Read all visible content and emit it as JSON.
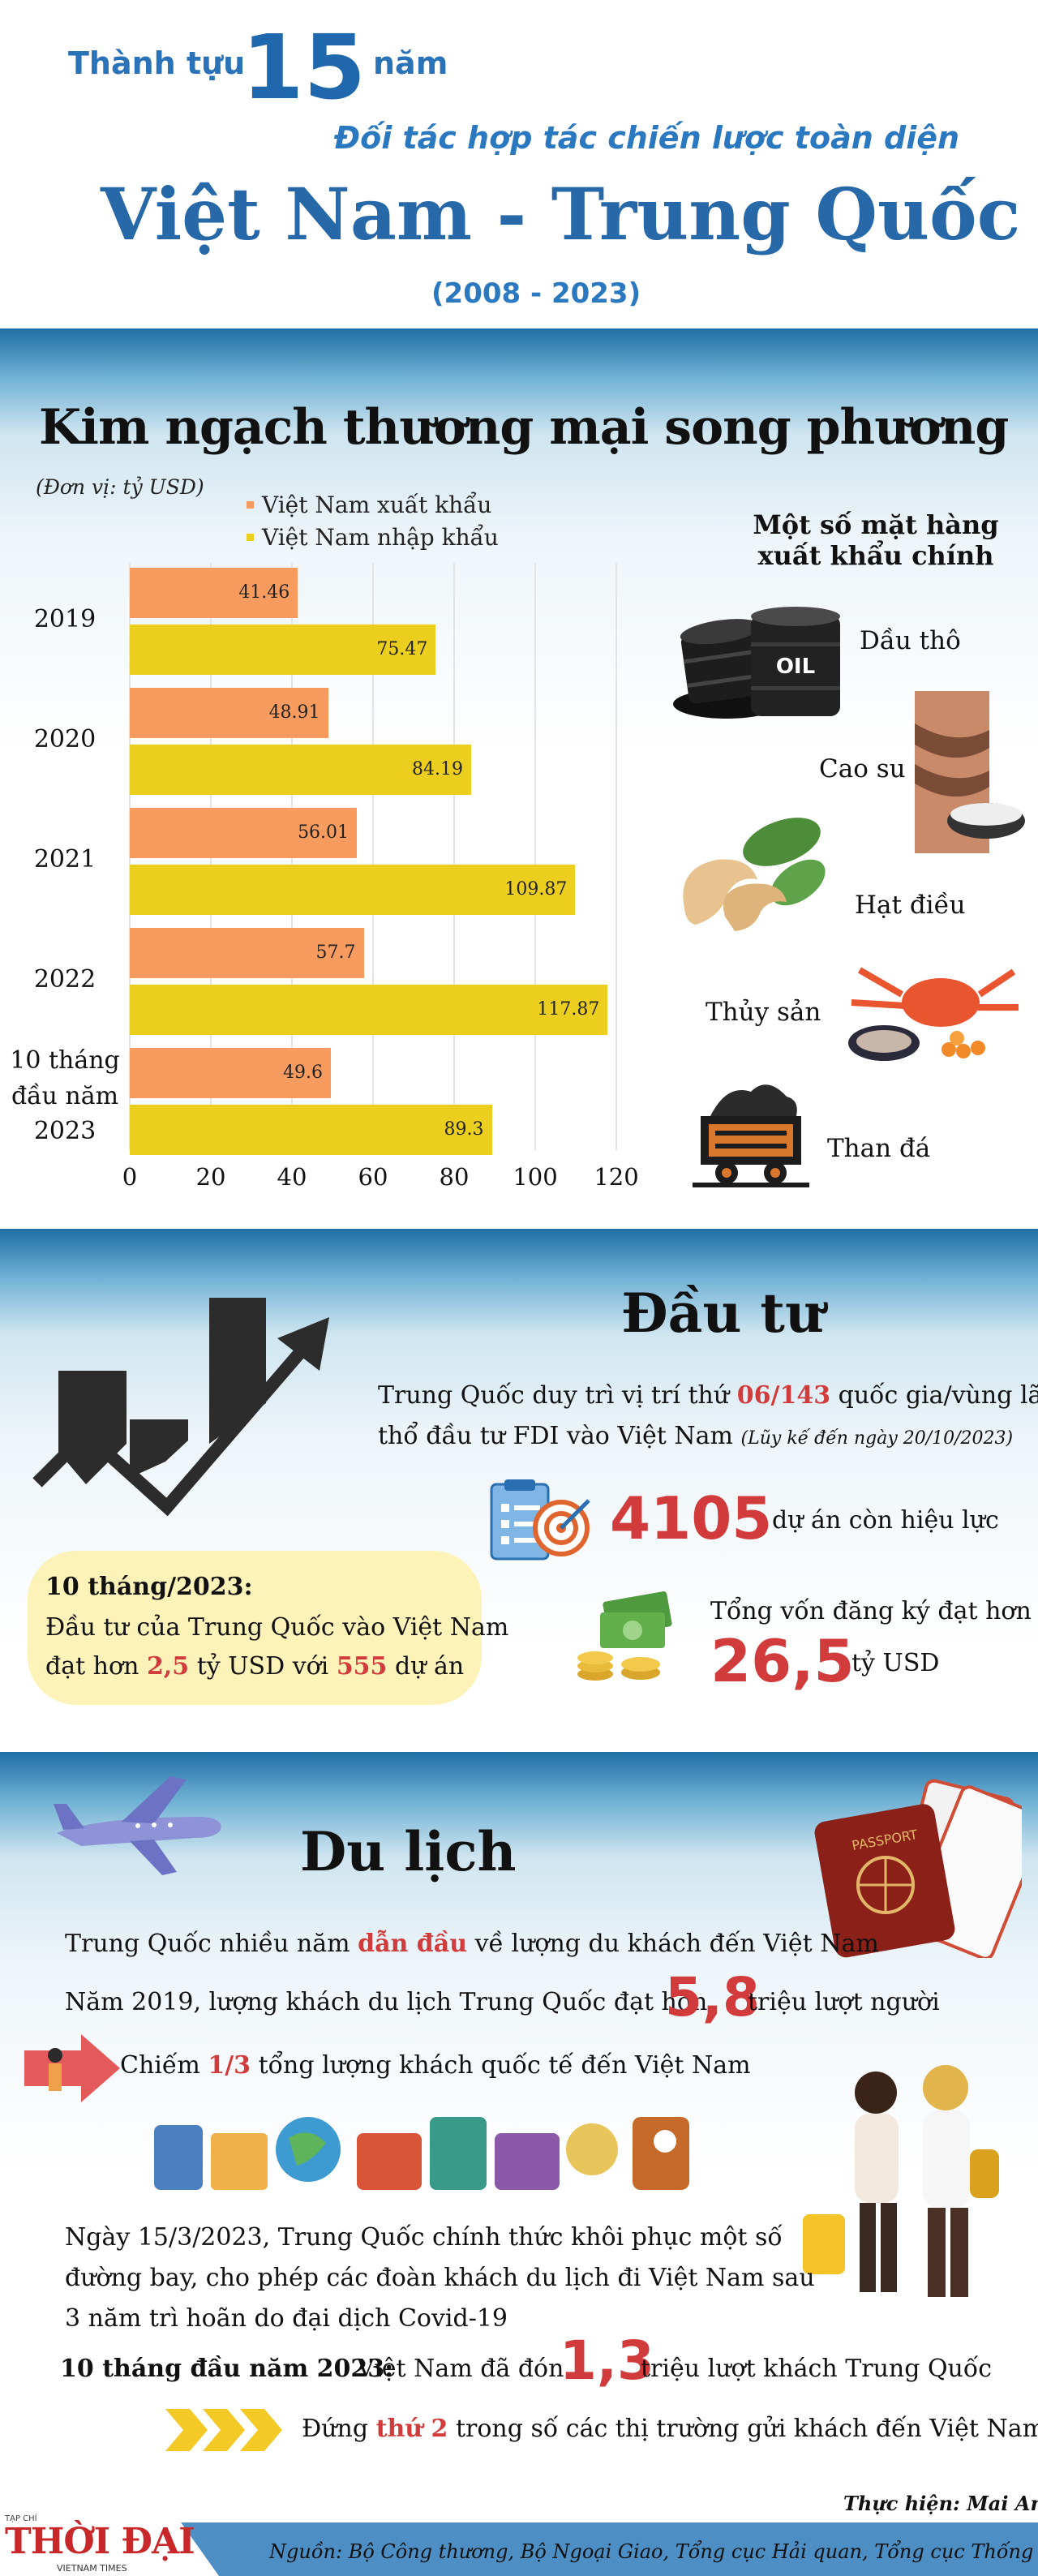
{
  "header": {
    "prefix": "Thành tựu",
    "number": "15",
    "suffix": "năm",
    "subtitle": "Đối tác hợp tác chiến lược toàn diện",
    "title": "Việt Nam - Trung Quốc",
    "years": "(2008 - 2023)"
  },
  "trade": {
    "title": "Kim ngạch thương mại song phương",
    "unit": "(Đơn vị: tỷ USD)",
    "exports_title": "Một số mặt hàng xuất khẩu chính",
    "exports": [
      "Dầu thô",
      "Cao su",
      "Hạt điều",
      "Thủy sản",
      "Than đá"
    ]
  },
  "chart_data": {
    "type": "bar",
    "orientation": "horizontal",
    "categories": [
      "2019",
      "2020",
      "2021",
      "2022",
      "10 tháng đầu năm 2023"
    ],
    "series": [
      {
        "name": "Việt Nam xuất khẩu",
        "values": [
          41.46,
          48.91,
          56.01,
          57.7,
          49.6
        ],
        "value_labels": [
          "41.46",
          "48.91",
          "56.01",
          "57.7",
          "49.6"
        ],
        "color": "#f79b5f"
      },
      {
        "name": "Việt Nam nhập khẩu",
        "values": [
          75.47,
          84.19,
          109.87,
          117.87,
          89.3
        ],
        "value_labels": [
          "75.47",
          "84.19",
          "109.87",
          "117.87",
          "89.3"
        ],
        "color": "#ecce1f"
      }
    ],
    "xlim": [
      0,
      120
    ],
    "xticks": [
      "0",
      "20",
      "40",
      "60",
      "80",
      "100",
      "120"
    ],
    "grid": true,
    "legend": "top-left"
  },
  "invest": {
    "title": "Đầu tư",
    "rank_pre": "Trung Quốc duy trì vị trí thứ",
    "rank": "06/143",
    "rank_post": "quốc gia/vùng lãnh",
    "rank_line2": "thổ đầu tư FDI vào Việt Nam",
    "rank_note": "(Lũy kế đến ngày 20/10/2023)",
    "projects": "4105",
    "projects_label": "dự án còn hiệu lực",
    "capital_label": "Tổng vốn đăng ký đạt hơn",
    "capital": "26,5",
    "capital_unit": "tỷ USD",
    "box_title": "10 tháng/2023:",
    "box_line1": "Đầu tư của Trung Quốc vào Việt Nam",
    "box_pre": "đạt hơn",
    "box_amount": "2,5",
    "box_mid": "tỷ USD với",
    "box_count": "555",
    "box_post": "dự án"
  },
  "tourism": {
    "title": "Du lịch",
    "lead_pre": "Trung Quốc nhiều năm",
    "lead_hl": "dẫn đầu",
    "lead_post": "về lượng du khách đến Việt Nam",
    "y2019_pre": "Năm 2019, lượng khách du lịch Trung Quốc đạt hơn",
    "y2019_num": "5,8",
    "y2019_post": "triệu lượt người",
    "share_pre": "Chiếm",
    "share_hl": "1/3",
    "share_post": "tổng lượng khách quốc tế đến Việt Nam",
    "restore_1": "Ngày 15/3/2023, Trung Quốc chính thức khôi phục một số",
    "restore_2": "đường bay, cho phép các đoàn khách du lịch đi Việt Nam sau",
    "restore_3": "3 năm trì hoãn do đại dịch Covid-19",
    "m10_label": "10 tháng đầu năm 2023:",
    "m10_pre": "Việt Nam đã đón",
    "m10_num": "1,3",
    "m10_post": "triệu lượt khách Trung Quốc",
    "rank_pre": "Đứng",
    "rank_hl": "thứ 2",
    "rank_post": "trong số các thị trường gửi khách đến Việt Nam"
  },
  "footer": {
    "logo_top": "TẠP CHÍ",
    "logo": "THỜI ĐẠI",
    "logo_sub": "VIETNAM TIMES",
    "credit": "Thực hiện: Mai Anh",
    "source": "Nguồn: Bộ Công thương, Bộ Ngoại Giao, Tổng cục Hải quan, Tổng cục Thống kê."
  },
  "colors": {
    "accent": "#2668a8",
    "export": "#f79b5f",
    "import": "#ecce1f",
    "highlight": "#d23b3b"
  }
}
